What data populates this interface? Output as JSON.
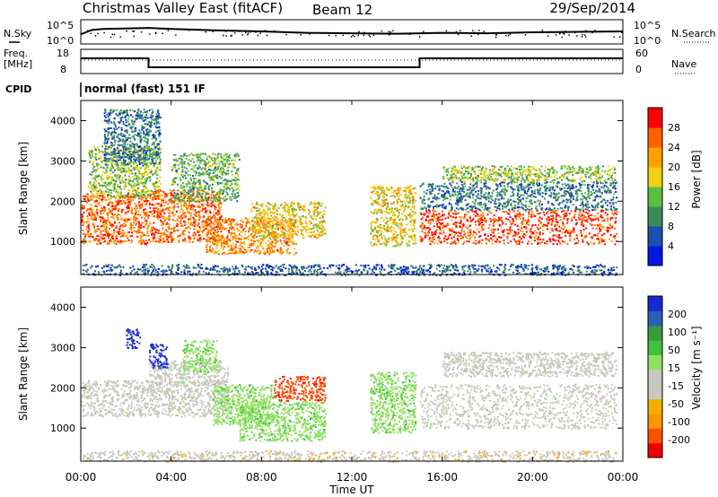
{
  "header": {
    "title": "Christmas Valley East (fitACF)",
    "beam": "Beam 12",
    "date": "29/Sep/2014"
  },
  "noise_panel": {
    "left_label": "N.Sky",
    "right_label": "N.Search",
    "y_ticks": [
      "10^5",
      "10^0"
    ]
  },
  "freq_panel": {
    "left_label_1": "Freq.",
    "left_label_2": "[MHz]",
    "left_ticks": [
      "18",
      "8"
    ],
    "right_label": "Nave",
    "right_ticks": [
      "60",
      "0"
    ]
  },
  "cpid_panel": {
    "label": "CPID",
    "text": "normal (fast) 151 IF"
  },
  "power_panel": {
    "ylabel": "Slant Range [km]",
    "y_ticks": [
      "4000",
      "3000",
      "2000",
      "1000"
    ],
    "colorbar_label": "Power [dB]",
    "colorbar_ticks": [
      "28",
      "24",
      "20",
      "16",
      "12",
      "8",
      "4"
    ]
  },
  "velocity_panel": {
    "ylabel": "Slant Range [km]",
    "y_ticks": [
      "4000",
      "3000",
      "2000",
      "1000"
    ],
    "colorbar_label": "Velocity [m s⁻¹]",
    "colorbar_ticks": [
      "200",
      "100",
      "50",
      "15",
      "-15",
      "-50",
      "-100",
      "-200"
    ]
  },
  "x_axis": {
    "ticks": [
      "00:00",
      "04:00",
      "08:00",
      "12:00",
      "16:00",
      "20:00",
      "00:00"
    ],
    "label": "Time UT"
  },
  "colors": {
    "power_scale": [
      "#0018e0",
      "#1c4fb0",
      "#3c8a5a",
      "#58c040",
      "#f0d010",
      "#ffa000",
      "#ff6000",
      "#ff0000"
    ],
    "velocity_scale": [
      "#ee0000",
      "#ff5000",
      "#ff9500",
      "#f0b000",
      "#c8c8c0",
      "#c8c8c0",
      "#90e060",
      "#40c040",
      "#3a9a3a",
      "#2a5fb8",
      "#1a2ad0"
    ]
  },
  "chart_data": [
    {
      "type": "line",
      "title": "Noise (N.Sky)",
      "x": [
        0.0,
        0.5,
        1.0,
        2.0,
        3.0,
        4.0,
        6.0,
        8.0,
        10.0,
        12.0,
        14.0,
        16.0,
        18.0,
        20.0,
        22.0,
        24.0
      ],
      "values": [
        2.0,
        2.9,
        3.1,
        3.2,
        3.3,
        3.1,
        2.8,
        2.6,
        2.3,
        2.2,
        2.1,
        2.3,
        2.2,
        2.4,
        2.5,
        2.6
      ],
      "ylim": [
        0,
        5
      ]
    },
    {
      "type": "line",
      "title": "Frequency [MHz]",
      "x": [
        0.0,
        3.0,
        3.0,
        15.0,
        15.0,
        24.0
      ],
      "values": [
        14.3,
        14.3,
        10.6,
        10.6,
        14.3,
        14.3
      ],
      "ylim": [
        8,
        18
      ]
    },
    {
      "type": "heatmap",
      "title": "Power [dB]",
      "xlim": [
        0,
        24
      ],
      "ylim": [
        180,
        4500
      ],
      "clim": [
        0,
        30
      ],
      "regions": [
        {
          "t": [
            0.0,
            3.0
          ],
          "r": [
            950,
            2200
          ],
          "v": 24
        },
        {
          "t": [
            0.3,
            3.5
          ],
          "r": [
            2100,
            3400
          ],
          "v": 14
        },
        {
          "t": [
            1.0,
            3.5
          ],
          "r": [
            2900,
            4300
          ],
          "v": 8
        },
        {
          "t": [
            3.0,
            6.2
          ],
          "r": [
            1000,
            2300
          ],
          "v": 24
        },
        {
          "t": [
            4.0,
            7.0
          ],
          "r": [
            2000,
            3200
          ],
          "v": 12
        },
        {
          "t": [
            5.5,
            9.5
          ],
          "r": [
            700,
            1600
          ],
          "v": 22
        },
        {
          "t": [
            7.5,
            10.8
          ],
          "r": [
            1100,
            2000
          ],
          "v": 18
        },
        {
          "t": [
            0.0,
            23.7
          ],
          "r": [
            180,
            450
          ],
          "v": 6
        },
        {
          "t": [
            12.8,
            14.8
          ],
          "r": [
            900,
            2400
          ],
          "v": 18
        },
        {
          "t": [
            15.0,
            23.7
          ],
          "r": [
            950,
            1800
          ],
          "v": 26
        },
        {
          "t": [
            15.0,
            23.7
          ],
          "r": [
            1800,
            2500
          ],
          "v": 8
        },
        {
          "t": [
            16.0,
            23.7
          ],
          "r": [
            2500,
            2900
          ],
          "v": 14
        }
      ]
    },
    {
      "type": "heatmap",
      "title": "Velocity [m s⁻¹]",
      "xlim": [
        0,
        24
      ],
      "ylim": [
        180,
        4500
      ],
      "clim": [
        -200,
        200
      ],
      "regions": [
        {
          "t": [
            0.0,
            6.5
          ],
          "r": [
            1300,
            2200
          ],
          "v": 0
        },
        {
          "t": [
            3.0,
            6.5
          ],
          "r": [
            2100,
            2700
          ],
          "v": 0
        },
        {
          "t": [
            2.0,
            2.6
          ],
          "r": [
            3000,
            3500
          ],
          "v": 180
        },
        {
          "t": [
            3.0,
            3.8
          ],
          "r": [
            2500,
            3100
          ],
          "v": 180
        },
        {
          "t": [
            4.5,
            6.0
          ],
          "r": [
            2400,
            3200
          ],
          "v": 40
        },
        {
          "t": [
            5.8,
            8.5
          ],
          "r": [
            1100,
            2100
          ],
          "v": 40
        },
        {
          "t": [
            7.0,
            10.8
          ],
          "r": [
            700,
            1700
          ],
          "v": 40
        },
        {
          "t": [
            8.5,
            10.8
          ],
          "r": [
            1700,
            2300
          ],
          "v": -150
        },
        {
          "t": [
            12.8,
            14.8
          ],
          "r": [
            900,
            2400
          ],
          "v": 40
        },
        {
          "t": [
            15.0,
            23.7
          ],
          "r": [
            1000,
            2100
          ],
          "v": 0
        },
        {
          "t": [
            16.0,
            23.7
          ],
          "r": [
            2300,
            2900
          ],
          "v": 0
        },
        {
          "t": [
            0.0,
            23.7
          ],
          "r": [
            180,
            450
          ],
          "v": -40
        }
      ]
    }
  ]
}
